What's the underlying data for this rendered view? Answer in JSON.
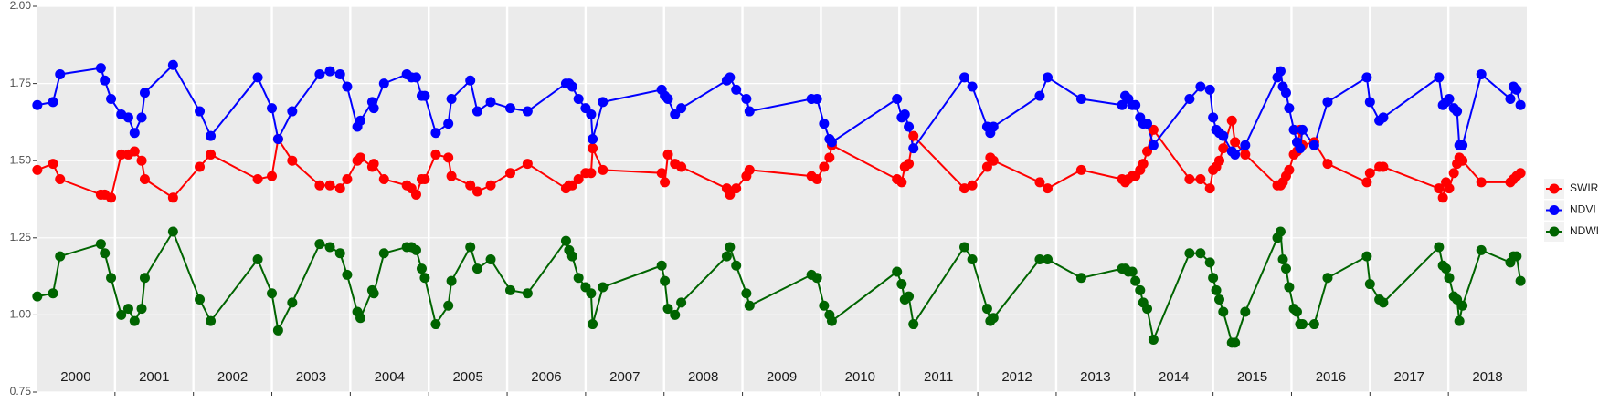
{
  "chart_data": {
    "type": "line",
    "panels": [
      "2000",
      "2001",
      "2002",
      "2003",
      "2004",
      "2005",
      "2006",
      "2007",
      "2008",
      "2009",
      "2010",
      "2011",
      "2012",
      "2013",
      "2014",
      "2015",
      "2016",
      "2017",
      "2018"
    ],
    "xlim": [
      2000,
      2019
    ],
    "xticks": [
      2001,
      2002,
      2003,
      2004,
      2005,
      2006,
      2007,
      2008,
      2009,
      2010,
      2011,
      2012,
      2013,
      2014,
      2015,
      2016,
      2017,
      2018
    ],
    "ylim": [
      0.75,
      2.0
    ],
    "yticks": [
      0.75,
      {
        "value": 1.0,
        "label": "1.00"
      },
      {
        "value": 1.25,
        "label": "1.25"
      },
      {
        "value": 1.5,
        "label": "1.50"
      },
      {
        "value": 1.75,
        "label": "1.75"
      },
      {
        "value": 2.0,
        "label": "2.00"
      }
    ],
    "grid": true,
    "legend": "right",
    "x": [
      2000.01,
      2000.21,
      2000.3,
      2000.82,
      2000.87,
      2000.95,
      2001.08,
      2001.17,
      2001.25,
      2001.34,
      2001.38,
      2001.74,
      2002.08,
      2002.22,
      2002.82,
      2003.0,
      2003.08,
      2003.26,
      2003.61,
      2003.74,
      2003.87,
      2003.96,
      2004.09,
      2004.13,
      2004.28,
      2004.3,
      2004.43,
      2004.72,
      2004.78,
      2004.84,
      2004.91,
      2004.95,
      2005.09,
      2005.25,
      2005.29,
      2005.53,
      2005.62,
      2005.79,
      2006.04,
      2006.26,
      2006.75,
      2006.79,
      2006.83,
      2006.91,
      2007.0,
      2007.07,
      2007.09,
      2007.22,
      2007.97,
      2008.01,
      2008.05,
      2008.14,
      2008.22,
      2008.8,
      2008.84,
      2008.92,
      2009.05,
      2009.09,
      2009.88,
      2009.95,
      2010.04,
      2010.11,
      2010.14,
      2010.97,
      2011.03,
      2011.07,
      2011.12,
      2011.18,
      2011.83,
      2011.93,
      2012.12,
      2012.16,
      2012.2,
      2012.79,
      2012.89,
      2013.32,
      2013.84,
      2013.88,
      2013.92,
      2013.97,
      2014.01,
      2014.07,
      2014.11,
      2014.16,
      2014.24,
      2014.7,
      2014.84,
      2014.96,
      2015.0,
      2015.04,
      2015.08,
      2015.13,
      2015.24,
      2015.28,
      2015.41,
      2015.82,
      2015.86,
      2015.89,
      2015.93,
      2015.97,
      2016.03,
      2016.07,
      2016.11,
      2016.14,
      2016.29,
      2016.46,
      2016.96,
      2017.0,
      2017.12,
      2017.17,
      2017.88,
      2017.93,
      2017.97,
      2018.01,
      2018.07,
      2018.11,
      2018.14,
      2018.18,
      2018.42,
      2018.79,
      2018.83,
      2018.87,
      2018.92
    ],
    "series": [
      {
        "name": "SWIR",
        "color": "#ff0000",
        "values": [
          1.47,
          1.49,
          1.44,
          1.39,
          1.39,
          1.38,
          1.52,
          1.52,
          1.53,
          1.5,
          1.44,
          1.38,
          1.48,
          1.52,
          1.44,
          1.45,
          1.57,
          1.5,
          1.42,
          1.42,
          1.41,
          1.44,
          1.5,
          1.51,
          1.48,
          1.49,
          1.44,
          1.42,
          1.41,
          1.39,
          1.44,
          1.44,
          1.52,
          1.51,
          1.45,
          1.42,
          1.4,
          1.42,
          1.46,
          1.49,
          1.41,
          1.42,
          1.42,
          1.44,
          1.46,
          1.46,
          1.54,
          1.47,
          1.46,
          1.43,
          1.52,
          1.49,
          1.48,
          1.41,
          1.39,
          1.41,
          1.45,
          1.47,
          1.45,
          1.44,
          1.48,
          1.51,
          1.55,
          1.44,
          1.43,
          1.48,
          1.49,
          1.58,
          1.41,
          1.42,
          1.48,
          1.51,
          1.5,
          1.43,
          1.41,
          1.47,
          1.44,
          1.43,
          1.44,
          1.45,
          1.45,
          1.47,
          1.49,
          1.53,
          1.6,
          1.44,
          1.44,
          1.41,
          1.47,
          1.48,
          1.5,
          1.54,
          1.63,
          1.56,
          1.52,
          1.42,
          1.42,
          1.43,
          1.45,
          1.47,
          1.52,
          1.53,
          1.6,
          1.55,
          1.56,
          1.49,
          1.43,
          1.46,
          1.48,
          1.48,
          1.41,
          1.38,
          1.43,
          1.41,
          1.46,
          1.49,
          1.51,
          1.5,
          1.43,
          1.43,
          1.44,
          1.45,
          1.46
        ]
      },
      {
        "name": "NDVI",
        "color": "#0000ff",
        "values": [
          1.68,
          1.69,
          1.78,
          1.8,
          1.76,
          1.7,
          1.65,
          1.64,
          1.59,
          1.64,
          1.72,
          1.81,
          1.66,
          1.58,
          1.77,
          1.67,
          1.57,
          1.66,
          1.78,
          1.79,
          1.78,
          1.74,
          1.61,
          1.63,
          1.69,
          1.67,
          1.75,
          1.78,
          1.77,
          1.77,
          1.71,
          1.71,
          1.59,
          1.62,
          1.7,
          1.76,
          1.66,
          1.69,
          1.67,
          1.66,
          1.75,
          1.75,
          1.74,
          1.7,
          1.67,
          1.65,
          1.57,
          1.69,
          1.73,
          1.71,
          1.7,
          1.65,
          1.67,
          1.76,
          1.77,
          1.73,
          1.7,
          1.66,
          1.7,
          1.7,
          1.62,
          1.57,
          1.56,
          1.7,
          1.64,
          1.65,
          1.61,
          1.54,
          1.77,
          1.74,
          1.61,
          1.59,
          1.61,
          1.71,
          1.77,
          1.7,
          1.68,
          1.71,
          1.7,
          1.68,
          1.68,
          1.64,
          1.62,
          1.62,
          1.55,
          1.7,
          1.74,
          1.73,
          1.64,
          1.6,
          1.59,
          1.58,
          1.53,
          1.52,
          1.55,
          1.77,
          1.79,
          1.74,
          1.72,
          1.67,
          1.6,
          1.56,
          1.54,
          1.6,
          1.55,
          1.69,
          1.77,
          1.69,
          1.63,
          1.64,
          1.77,
          1.68,
          1.69,
          1.7,
          1.67,
          1.66,
          1.55,
          1.55,
          1.78,
          1.7,
          1.74,
          1.73,
          1.68
        ]
      },
      {
        "name": "NDWI",
        "color": "#006400",
        "values": [
          1.06,
          1.07,
          1.19,
          1.23,
          1.2,
          1.12,
          1.0,
          1.02,
          0.98,
          1.02,
          1.12,
          1.27,
          1.05,
          0.98,
          1.18,
          1.07,
          0.95,
          1.04,
          1.23,
          1.22,
          1.2,
          1.13,
          1.01,
          0.99,
          1.08,
          1.07,
          1.2,
          1.22,
          1.22,
          1.21,
          1.15,
          1.12,
          0.97,
          1.03,
          1.11,
          1.22,
          1.15,
          1.18,
          1.08,
          1.07,
          1.24,
          1.21,
          1.19,
          1.12,
          1.09,
          1.07,
          0.97,
          1.09,
          1.16,
          1.11,
          1.02,
          1.0,
          1.04,
          1.19,
          1.22,
          1.16,
          1.07,
          1.03,
          1.13,
          1.12,
          1.03,
          1.0,
          0.98,
          1.14,
          1.1,
          1.05,
          1.06,
          0.97,
          1.22,
          1.18,
          1.02,
          0.98,
          0.99,
          1.18,
          1.18,
          1.12,
          1.15,
          1.15,
          1.14,
          1.14,
          1.11,
          1.08,
          1.04,
          1.02,
          0.92,
          1.2,
          1.2,
          1.17,
          1.12,
          1.08,
          1.05,
          1.01,
          0.91,
          0.91,
          1.01,
          1.25,
          1.27,
          1.18,
          1.15,
          1.09,
          1.02,
          1.01,
          0.97,
          0.97,
          0.97,
          1.12,
          1.19,
          1.1,
          1.05,
          1.04,
          1.22,
          1.16,
          1.15,
          1.12,
          1.06,
          1.05,
          0.98,
          1.03,
          1.21,
          1.17,
          1.19,
          1.19,
          1.11
        ]
      }
    ]
  }
}
